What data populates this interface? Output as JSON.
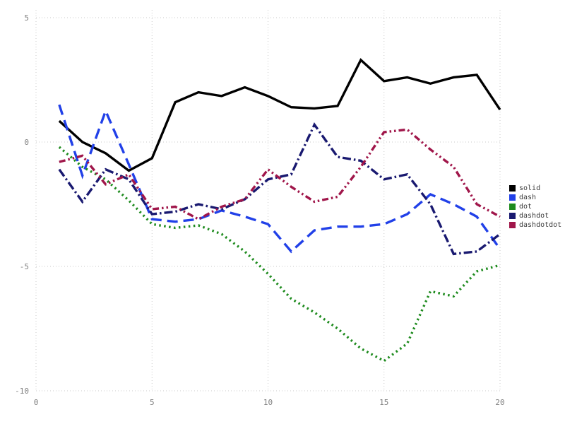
{
  "chart_data": {
    "type": "line",
    "title": "",
    "xlabel": "",
    "ylabel": "",
    "x": [
      1,
      2,
      3,
      4,
      5,
      6,
      7,
      8,
      9,
      10,
      11,
      12,
      13,
      14,
      15,
      16,
      17,
      18,
      19,
      20
    ],
    "series": [
      {
        "name": "solid",
        "label": "solid",
        "color": "#000000",
        "line_style": "solid",
        "values": [
          0.85,
          0.0,
          -0.45,
          -1.15,
          -0.65,
          1.6,
          2.0,
          1.85,
          2.2,
          1.85,
          1.4,
          1.35,
          1.45,
          3.3,
          2.45,
          2.6,
          2.35,
          2.6,
          2.7,
          1.3
        ]
      },
      {
        "name": "dash",
        "label": "dash",
        "color": "#2140e8",
        "line_style": "dash",
        "values": [
          1.5,
          -1.35,
          1.25,
          -0.9,
          -3.1,
          -3.2,
          -3.1,
          -2.75,
          -3.0,
          -3.3,
          -4.4,
          -3.55,
          -3.4,
          -3.4,
          -3.3,
          -2.9,
          -2.1,
          -2.5,
          -3.0,
          -4.3
        ]
      },
      {
        "name": "dot",
        "label": "dot",
        "color": "#1e8b1e",
        "line_style": "dot",
        "values": [
          -0.2,
          -1.0,
          -1.5,
          -2.35,
          -3.3,
          -3.45,
          -3.35,
          -3.7,
          -4.4,
          -5.3,
          -6.3,
          -6.85,
          -7.5,
          -8.3,
          -8.8,
          -8.1,
          -6.0,
          -6.2,
          -5.2,
          -4.95
        ]
      },
      {
        "name": "dashdot",
        "label": "dashdot",
        "color": "#191970",
        "line_style": "dashdot",
        "values": [
          -1.1,
          -2.4,
          -1.1,
          -1.5,
          -2.9,
          -2.8,
          -2.5,
          -2.7,
          -2.3,
          -1.5,
          -1.3,
          0.7,
          -0.6,
          -0.75,
          -1.5,
          -1.3,
          -2.5,
          -4.5,
          -4.4,
          -3.7
        ]
      },
      {
        "name": "dashdotdot",
        "label": "dashdotdot",
        "color": "#a0164a",
        "line_style": "dashdotdot",
        "values": [
          -0.8,
          -0.55,
          -1.7,
          -1.3,
          -2.7,
          -2.6,
          -3.1,
          -2.6,
          -2.3,
          -1.1,
          -1.8,
          -2.4,
          -2.2,
          -1.0,
          0.4,
          0.5,
          -0.3,
          -1.0,
          -2.5,
          -3.0
        ]
      }
    ],
    "xlim": [
      0,
      20
    ],
    "ylim": [
      -10,
      5
    ],
    "xticks": [
      0,
      5,
      10,
      15,
      20
    ],
    "yticks": [
      -10,
      -5,
      0,
      5
    ],
    "grid": true,
    "grid_style": "dotted",
    "legend_position": "right",
    "legend_labels": [
      "solid",
      "dash",
      "dot",
      "dashdot",
      "dashdotdot"
    ],
    "colors": {
      "background": "#ffffff",
      "grid": "#c9c9c9",
      "tick_label": "#808080",
      "legend_text": "#3c3c3c"
    }
  }
}
